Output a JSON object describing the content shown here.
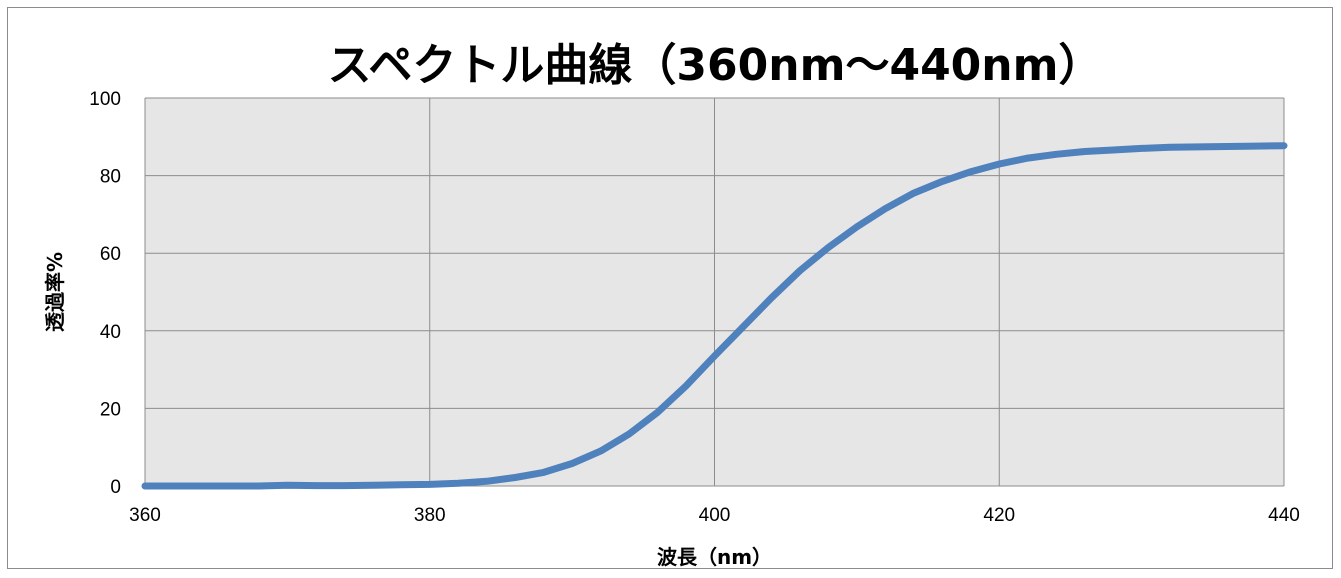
{
  "chart_data": {
    "type": "line",
    "title": "スペクトル曲線（360nm～440nm）",
    "xlabel": "波長（nm）",
    "ylabel": "透過率%",
    "xlim": [
      360,
      440
    ],
    "ylim": [
      0,
      100
    ],
    "xticks": [
      360,
      380,
      400,
      420,
      440
    ],
    "yticks": [
      0,
      20,
      40,
      60,
      80,
      100
    ],
    "grid": true,
    "legend": "none",
    "series": [
      {
        "color": "#4f81bd",
        "x": [
          360,
          362,
          364,
          366,
          368,
          370,
          372,
          374,
          376,
          378,
          380,
          382,
          384,
          386,
          388,
          390,
          392,
          394,
          396,
          398,
          400,
          402,
          404,
          406,
          408,
          410,
          412,
          414,
          416,
          418,
          420,
          422,
          424,
          426,
          428,
          430,
          432,
          434,
          436,
          438,
          440
        ],
        "y": [
          0,
          0,
          0,
          0,
          0,
          0.2,
          0.1,
          0.1,
          0.2,
          0.3,
          0.4,
          0.7,
          1.2,
          2.2,
          3.5,
          5.8,
          9.0,
          13.4,
          19.0,
          25.8,
          33.5,
          41.0,
          48.5,
          55.5,
          61.5,
          66.8,
          71.5,
          75.5,
          78.5,
          81.0,
          83.0,
          84.5,
          85.5,
          86.2,
          86.6,
          87.0,
          87.3,
          87.4,
          87.5,
          87.6,
          87.7
        ]
      }
    ]
  }
}
